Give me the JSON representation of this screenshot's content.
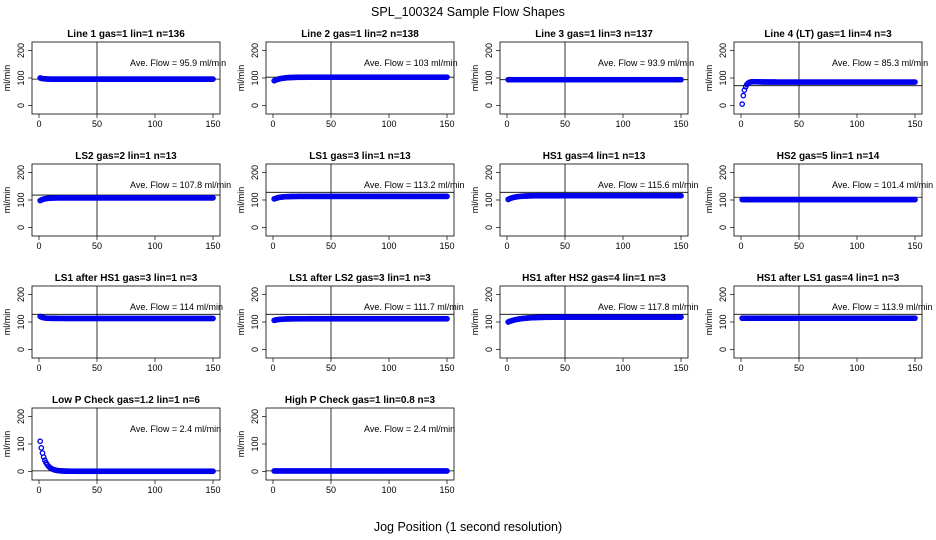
{
  "chart_data": {
    "type": "scatter",
    "title": "SPL_100324  Sample Flow Shapes",
    "xlabel": "Jog Position (1 second resolution)",
    "ylabel": "ml/min",
    "xlim": [
      0,
      150
    ],
    "ylim": [
      -20,
      220
    ],
    "x_ticks": [
      0,
      50,
      100,
      150
    ],
    "y_ticks": [
      0,
      100,
      200
    ],
    "vline_x": 50,
    "point_color": "#0000ee",
    "panels": [
      {
        "title": "Line 1 gas=1 lin=1 n=136",
        "annotation": "Ave. Flow =  95.9  ml/min",
        "mean": 95.9,
        "hline": 95.9,
        "start": 100,
        "settle": 95.9,
        "tau": 3
      },
      {
        "title": "Line 2 gas=1 lin=2 n=138",
        "annotation": "Ave. Flow =  103  ml/min",
        "mean": 103,
        "hline": 103,
        "start": 90,
        "settle": 103,
        "tau": 6
      },
      {
        "title": "Line 3 gas=1 lin=3 n=137",
        "annotation": "Ave. Flow =  93.9  ml/min",
        "mean": 93.9,
        "hline": 93.9,
        "start": 93.9,
        "settle": 93.9,
        "tau": 3
      },
      {
        "title": "Line 4 (LT) gas=1 lin=4 n=3",
        "annotation": "Ave. Flow =  85.3  ml/min",
        "mean": 85.3,
        "hline": 72,
        "start": 5,
        "settle": 85.3,
        "tau": 3,
        "overshoot": 14
      },
      {
        "title": "LS2 gas=2 lin=1 n=13",
        "annotation": "Ave. Flow =  107.8  ml/min",
        "mean": 107.8,
        "hline": 118,
        "start": 98,
        "settle": 107.8,
        "tau": 4
      },
      {
        "title": "LS1 gas=3 lin=1 n=13",
        "annotation": "Ave. Flow =  113.2  ml/min",
        "mean": 113.2,
        "hline": 128,
        "start": 104,
        "settle": 113.2,
        "tau": 5
      },
      {
        "title": "HS1 gas=4 lin=1 n=13",
        "annotation": "Ave. Flow =  115.6  ml/min",
        "mean": 115.6,
        "hline": 128,
        "start": 102,
        "settle": 115.6,
        "tau": 6
      },
      {
        "title": "HS2 gas=5 lin=1 n=14",
        "annotation": "Ave. Flow =  101.4  ml/min",
        "mean": 101.4,
        "hline": 110,
        "start": 101.4,
        "settle": 101.4,
        "tau": 3
      },
      {
        "title": "LS1 after HS1 gas=3 lin=1 n=3",
        "annotation": "Ave. Flow =  114  ml/min",
        "mean": 114,
        "hline": 128,
        "start": 120,
        "settle": 113,
        "tau": 3
      },
      {
        "title": "LS1 after LS2 gas=3 lin=1 n=3",
        "annotation": "Ave. Flow =  111.7  ml/min",
        "mean": 111.7,
        "hline": 128,
        "start": 106,
        "settle": 111.7,
        "tau": 5
      },
      {
        "title": "HS1 after HS2 gas=4 lin=1 n=3",
        "annotation": "Ave. Flow =  117.8  ml/min",
        "mean": 117.8,
        "hline": 128,
        "start": 100,
        "settle": 117.8,
        "tau": 10
      },
      {
        "title": "HS1 after LS1 gas=4 lin=1 n=3",
        "annotation": "Ave. Flow =  113.9  ml/min",
        "mean": 113.9,
        "hline": 128,
        "start": 113.9,
        "settle": 113.9,
        "tau": 3
      },
      {
        "title": "Low P Check gas=1.2 lin=1 n=6",
        "annotation": "Ave. Flow =  2.4  ml/min",
        "mean": 2.4,
        "hline": 2.4,
        "start": 110,
        "settle": 1,
        "tau": 4
      },
      {
        "title": "High P Check gas=1 lin=0.8 n=3",
        "annotation": "Ave. Flow =  2.4  ml/min",
        "mean": 2.4,
        "hline": 2.4,
        "start": 2,
        "settle": 2,
        "tau": 3
      }
    ]
  }
}
